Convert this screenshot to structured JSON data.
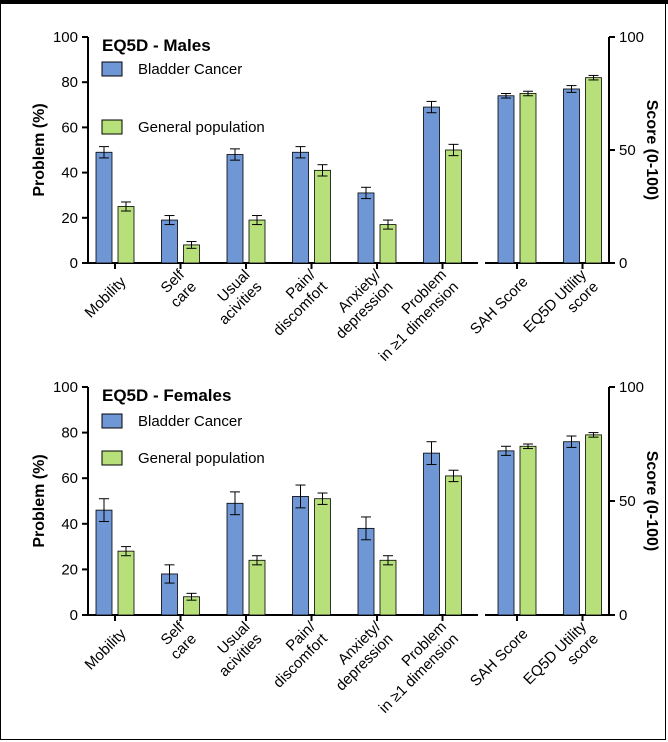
{
  "colors": {
    "bladder": "#6f97d6",
    "general": "#b7e07a",
    "axis": "#000000"
  },
  "chart_data": [
    {
      "type": "bar",
      "title": "EQ5D - Males",
      "ylabel": "Problem (%)",
      "y2label": "Score (0-100)",
      "ylim": [
        0,
        100
      ],
      "yticks": [
        "0",
        "20",
        "40",
        "60",
        "80",
        "100"
      ],
      "y2lim": [
        0,
        100
      ],
      "y2ticks": [
        "0",
        "50",
        "100"
      ],
      "grid": false,
      "legend_position": "top-left",
      "categories": [
        "Mobility",
        "Self care",
        "Usual acivities",
        "Pain/ discomfort",
        "Anxiety/ depression",
        "Problem in ≥1 dimension",
        "SAH Score",
        "EQ5D Utility score"
      ],
      "category_lines": [
        [
          "Mobility"
        ],
        [
          "Self",
          "care"
        ],
        [
          "Usual",
          "acivities"
        ],
        [
          "Pain/",
          "discomfort"
        ],
        [
          "Anxiety/",
          "depression"
        ],
        [
          "Problem",
          "in ≥1 dimension"
        ],
        [
          "SAH Score"
        ],
        [
          "EQ5D Utility",
          "score"
        ]
      ],
      "series": [
        {
          "name": "Bladder Cancer",
          "values": [
            49,
            19,
            48,
            49,
            31,
            69,
            74,
            77
          ],
          "errors": [
            2.5,
            2,
            2.5,
            2.5,
            2.5,
            2.5,
            1,
            1.5
          ]
        },
        {
          "name": "General population",
          "values": [
            25,
            8,
            19,
            41,
            17,
            50,
            75,
            82
          ],
          "errors": [
            2,
            1.5,
            2,
            2.5,
            2,
            2.5,
            1,
            1
          ]
        }
      ]
    },
    {
      "type": "bar",
      "title": "EQ5D - Females",
      "ylabel": "Problem (%)",
      "y2label": "Score (0-100)",
      "ylim": [
        0,
        100
      ],
      "yticks": [
        "0",
        "20",
        "40",
        "60",
        "80",
        "100"
      ],
      "y2lim": [
        0,
        100
      ],
      "y2ticks": [
        "0",
        "50",
        "100"
      ],
      "grid": false,
      "legend_position": "top-left",
      "categories": [
        "Mobility",
        "Self care",
        "Usual acivities",
        "Pain/ discomfort",
        "Anxiety/ depression",
        "Problem in ≥1 dimension",
        "SAH Score",
        "EQ5D Utility score"
      ],
      "category_lines": [
        [
          "Mobility"
        ],
        [
          "Self",
          "care"
        ],
        [
          "Usual",
          "acivities"
        ],
        [
          "Pain/",
          "discomfort"
        ],
        [
          "Anxiety/",
          "depression"
        ],
        [
          "Problem",
          "in ≥1 dimension"
        ],
        [
          "SAH Score"
        ],
        [
          "EQ5D Utility",
          "score"
        ]
      ],
      "series": [
        {
          "name": "Bladder Cancer",
          "values": [
            46,
            18,
            49,
            52,
            38,
            71,
            72,
            76
          ],
          "errors": [
            5,
            4,
            5,
            5,
            5,
            5,
            2,
            2.5
          ]
        },
        {
          "name": "General population",
          "values": [
            28,
            8,
            24,
            51,
            24,
            61,
            74,
            79
          ],
          "errors": [
            2,
            1.5,
            2,
            2.5,
            2,
            2.5,
            1,
            1
          ]
        }
      ]
    }
  ]
}
